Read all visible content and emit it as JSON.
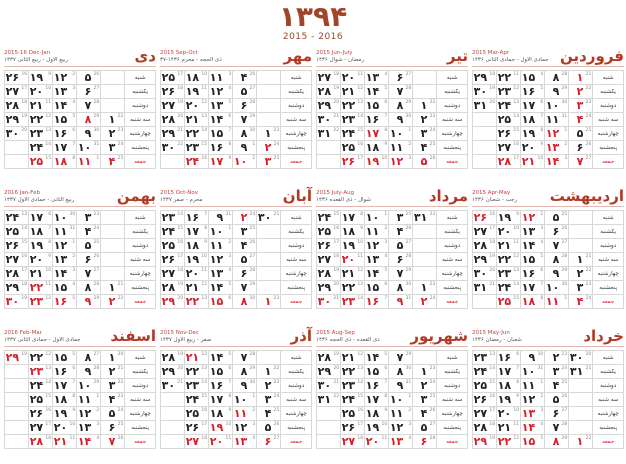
{
  "header": {
    "year": "۱۳۹۴",
    "gregorian_years": "2015 - 2016"
  },
  "weekdays": [
    "شنبه",
    "یکشنبه",
    "دوشنبه",
    "سه شنبه",
    "چهارشنبه",
    "پنجشنبه",
    "جمعه"
  ],
  "colors": {
    "holiday": "#d3202a",
    "month_name": "#b03a26",
    "title": "#a0452a"
  },
  "months": [
    {
      "name": "فروردین",
      "gregorian": "2015 Mar-Apr",
      "hijri": "جمادی الاول - جمادی الثانی ۱۴۳۶",
      "days": 31,
      "start_weekday": 0,
      "gregorian_start": [
        3,
        21
      ],
      "holidays": [
        1,
        2,
        3,
        4,
        12,
        13
      ]
    },
    {
      "name": "تیر",
      "gregorian": "2015 Jun-July",
      "hijri": "رمضان - شوال ۱۴۳۶",
      "days": 31,
      "start_weekday": 2,
      "gregorian_start": [
        6,
        22
      ],
      "holidays": [
        17
      ]
    },
    {
      "name": "مهر",
      "gregorian": "2015 Sep-Oct",
      "hijri": "ذی الحجه - محرم ۱۴۳۶-۳۷",
      "days": 30,
      "start_weekday": 4,
      "gregorian_start": [
        9,
        23
      ],
      "holidays": [
        2
      ]
    },
    {
      "name": "دی",
      "gregorian": "2015-16 Dec-Jan",
      "hijri": "ربیع الاول - ربیع الثانی ۱۴۳۷",
      "days": 30,
      "start_weekday": 3,
      "gregorian_start": [
        12,
        22
      ],
      "holidays": [
        8
      ]
    },
    {
      "name": "اردیبهشت",
      "gregorian": "2015 Apr-May",
      "hijri": "رجب - شعبان ۱۴۳۶",
      "days": 31,
      "start_weekday": 3,
      "gregorian_start": [
        4,
        21
      ],
      "holidays": [
        12,
        26
      ]
    },
    {
      "name": "مرداد",
      "gregorian": "2015 July-Aug",
      "hijri": "شوال - ذی القعده ۱۴۳۶",
      "days": 31,
      "start_weekday": 5,
      "gregorian_start": [
        7,
        23
      ],
      "holidays": [
        20
      ]
    },
    {
      "name": "آبان",
      "gregorian": "2015 Oct-Nov",
      "hijri": "محرم - صفر ۱۴۳۷",
      "days": 30,
      "start_weekday": 6,
      "gregorian_start": [
        10,
        23
      ],
      "holidays": [
        2
      ]
    },
    {
      "name": "بهمن",
      "gregorian": "2016 Jan-Feb",
      "hijri": "ربیع الثانی - جمادی الاول ۱۴۳۷",
      "days": 30,
      "start_weekday": 5,
      "gregorian_start": [
        1,
        21
      ],
      "holidays": [
        22
      ]
    },
    {
      "name": "خرداد",
      "gregorian": "2015 May-Jun",
      "hijri": "شعبان - رمضان ۱۴۳۶",
      "days": 31,
      "start_weekday": 6,
      "gregorian_start": [
        5,
        22
      ],
      "holidays": [
        13,
        14
      ]
    },
    {
      "name": "شهریور",
      "gregorian": "2015 Aug-Sep",
      "hijri": "ذی القعده - ذی الحجه ۱۴۳۶",
      "days": 31,
      "start_weekday": 1,
      "gregorian_start": [
        8,
        23
      ],
      "holidays": []
    },
    {
      "name": "آذر",
      "gregorian": "2015 Nov-Dec",
      "hijri": "صفر - ربیع الاول ۱۴۳۷",
      "days": 30,
      "start_weekday": 1,
      "gregorian_start": [
        11,
        22
      ],
      "holidays": [
        11,
        19,
        21
      ]
    },
    {
      "name": "اسفند",
      "gregorian": "2016 Feb-Mar",
      "hijri": "جمادی الاول - جمادی الثانی ۱۴۳۷",
      "days": 29,
      "start_weekday": 0,
      "gregorian_start": [
        2,
        20
      ],
      "holidays": [
        23,
        29
      ]
    }
  ]
}
